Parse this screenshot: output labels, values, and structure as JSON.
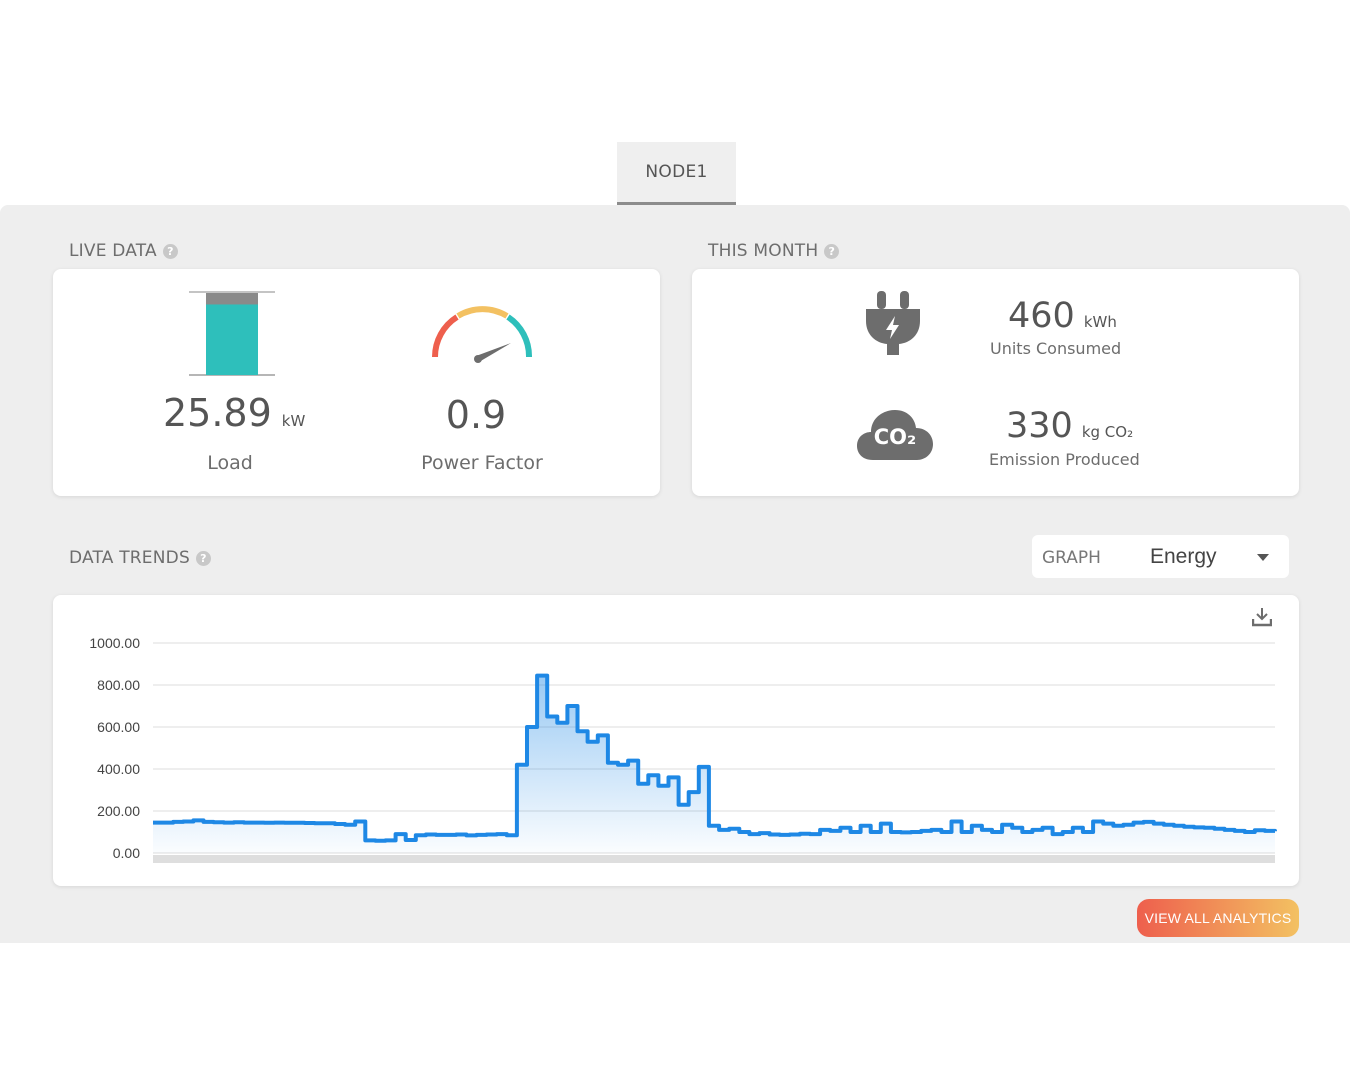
{
  "tab": {
    "label": "NODE1"
  },
  "live": {
    "title": "LIVE DATA",
    "load_value": "25.89",
    "load_unit": "kW",
    "load_label": "Load",
    "load_fill": 0.86,
    "pf_value": "0.9",
    "pf_label": "Power Factor",
    "pf_level": 0.9
  },
  "month": {
    "title": "THIS MONTH",
    "units_value": "460",
    "units_unit": "kWh",
    "units_label": "Units Consumed",
    "emission_value": "330",
    "emission_unit": "kg CO₂",
    "emission_label": "Emission Produced",
    "plug_icon": "plug-icon",
    "co2_icon": "co2-cloud-icon",
    "co2_text": "CO₂"
  },
  "trends": {
    "title": "DATA TRENDS",
    "graph_label": "GRAPH",
    "graph_value": "Energy",
    "download_icon": "download-icon"
  },
  "button": {
    "label": "VIEW ALL ANALYTICS"
  },
  "colors": {
    "accent": "#1e88e5",
    "teal": "#2ebfbb",
    "bg": "#eeeeee"
  },
  "chart_data": {
    "type": "line",
    "yticks": [
      "1000.00",
      "800.00",
      "600.00",
      "400.00",
      "200.00",
      "0.00"
    ],
    "ylim": [
      0,
      1000
    ],
    "grid": true,
    "series": [
      {
        "values": [
          145,
          145,
          148,
          150,
          155,
          148,
          146,
          145,
          146,
          145,
          145,
          144,
          145,
          144,
          144,
          143,
          142,
          142,
          138,
          135,
          150,
          60,
          58,
          60,
          90,
          62,
          85,
          88,
          86,
          86,
          88,
          84,
          86,
          88,
          90,
          85,
          420,
          600,
          845,
          650,
          620,
          700,
          580,
          530,
          560,
          430,
          420,
          440,
          330,
          370,
          320,
          360,
          230,
          290,
          410,
          130,
          110,
          115,
          100,
          90,
          95,
          88,
          86,
          88,
          92,
          90,
          110,
          105,
          120,
          100,
          130,
          100,
          140,
          100,
          98,
          100,
          105,
          110,
          100,
          150,
          100,
          130,
          110,
          100,
          135,
          120,
          100,
          110,
          120,
          90,
          100,
          120,
          100,
          150,
          140,
          130,
          135,
          145,
          148,
          140,
          135,
          130,
          125,
          122,
          120,
          115,
          110,
          105,
          100,
          108,
          105,
          104
        ]
      }
    ]
  }
}
